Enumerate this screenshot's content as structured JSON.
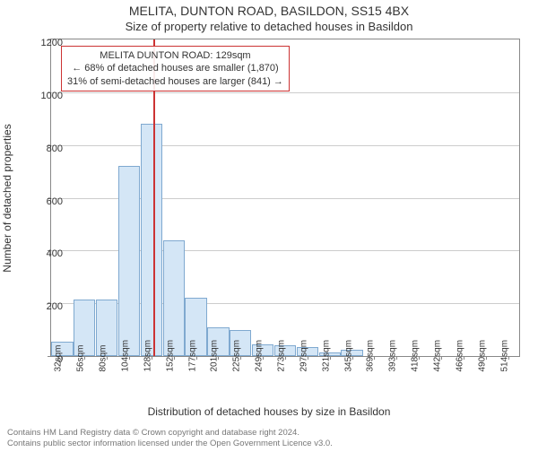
{
  "titles": {
    "line1": "MELITA, DUNTON ROAD, BASILDON, SS15 4BX",
    "line2": "Size of property relative to detached houses in Basildon"
  },
  "chart": {
    "type": "bar",
    "xlabel": "Distribution of detached houses by size in Basildon",
    "ylabel": "Number of detached properties",
    "ylim": [
      0,
      1200
    ],
    "yticks": [
      0,
      200,
      400,
      600,
      800,
      1000,
      1200
    ],
    "x_categories": [
      "32sqm",
      "56sqm",
      "80sqm",
      "104sqm",
      "128sqm",
      "152sqm",
      "177sqm",
      "201sqm",
      "225sqm",
      "249sqm",
      "273sqm",
      "297sqm",
      "321sqm",
      "345sqm",
      "369sqm",
      "393sqm",
      "418sqm",
      "442sqm",
      "466sqm",
      "490sqm",
      "514sqm"
    ],
    "values": [
      55,
      215,
      215,
      720,
      880,
      440,
      220,
      110,
      100,
      45,
      40,
      35,
      15,
      25,
      0,
      0,
      0,
      0,
      0,
      0,
      0
    ],
    "bar_fill": "#d4e6f6",
    "bar_border": "#7fa9d0",
    "background_color": "#ffffff",
    "grid_color": "#cccccc",
    "axis_color": "#888888",
    "marker": {
      "position_index": 4.08,
      "color": "#cc3333"
    },
    "annotation": {
      "border_color": "#cc3333",
      "lines": [
        "MELITA DUNTON ROAD: 129sqm",
        "← 68% of detached houses are smaller (1,870)",
        "31% of semi-detached houses are larger (841) →"
      ]
    }
  },
  "footer": {
    "line1": "Contains HM Land Registry data © Crown copyright and database right 2024.",
    "line2": "Contains public sector information licensed under the Open Government Licence v3.0."
  }
}
